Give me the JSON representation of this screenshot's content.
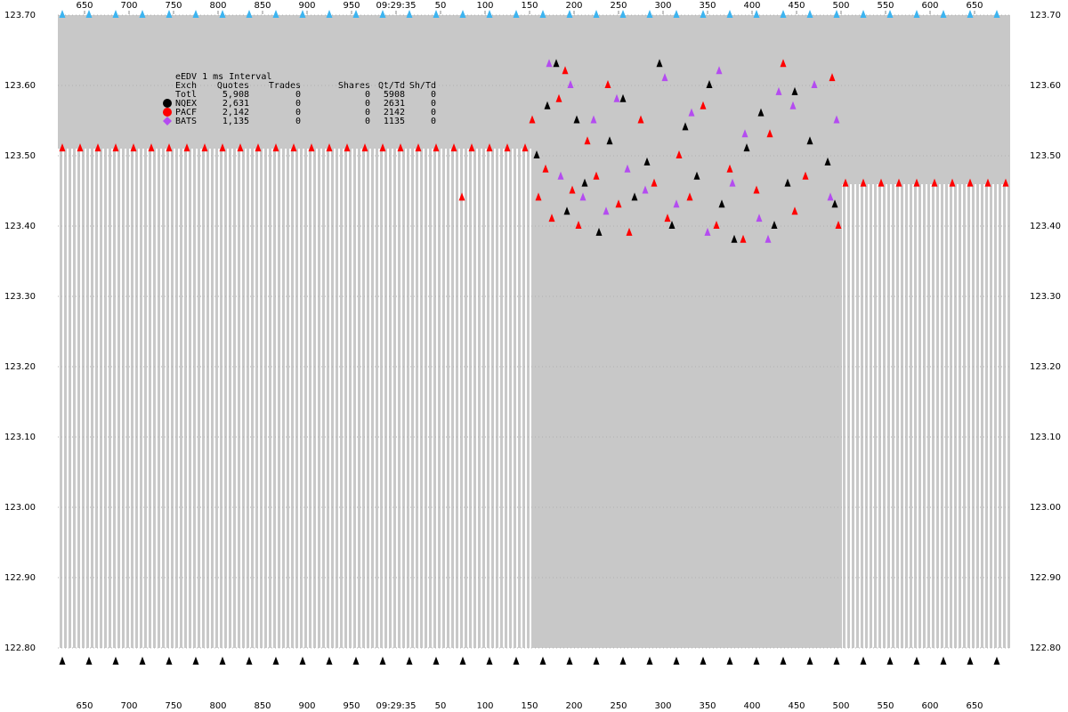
{
  "chart_data": {
    "type": "scatter",
    "xlim": [
      620,
      1690
    ],
    "ylim": [
      122.8,
      123.7
    ],
    "grid": true,
    "xticks": [
      650,
      700,
      750,
      800,
      850,
      900,
      950,
      {
        "value": 1000,
        "label": "09:29:35"
      },
      {
        "value": 1050,
        "label": "50"
      },
      {
        "value": 1100,
        "label": "100"
      },
      {
        "value": 1150,
        "label": "150"
      },
      {
        "value": 1200,
        "label": "200"
      },
      {
        "value": 1250,
        "label": "250"
      },
      {
        "value": 1300,
        "label": "300"
      },
      {
        "value": 1350,
        "label": "350"
      },
      {
        "value": 1400,
        "label": "400"
      },
      {
        "value": 1450,
        "label": "450"
      },
      {
        "value": 1500,
        "label": "500"
      },
      {
        "value": 1550,
        "label": "550"
      },
      {
        "value": 1600,
        "label": "600"
      },
      {
        "value": 1650,
        "label": "650"
      }
    ],
    "yticks": [
      {
        "value": 122.8,
        "label": "122.80"
      },
      {
        "value": 122.9,
        "label": "122.90"
      },
      {
        "value": 123.0,
        "label": "123.00"
      },
      {
        "value": 123.1,
        "label": "123.10"
      },
      {
        "value": 123.2,
        "label": "123.20"
      },
      {
        "value": 123.3,
        "label": "123.30"
      },
      {
        "value": 123.4,
        "label": "123.40"
      },
      {
        "value": 123.5,
        "label": "123.50"
      },
      {
        "value": 123.6,
        "label": "123.60"
      },
      {
        "value": 123.7,
        "label": "123.70"
      }
    ],
    "table": {
      "title": "eEDV 1 ms Interval",
      "columns": [
        "Exch",
        "Quotes",
        "Trades",
        "Shares",
        "Qt/Td",
        "Sh/Td"
      ],
      "rows": [
        [
          "Totl",
          "5,908",
          "0",
          "0",
          "5908",
          "0"
        ],
        [
          "NQEX",
          "2,631",
          "0",
          "0",
          "2631",
          "0"
        ],
        [
          "PACF",
          "2,142",
          "0",
          "0",
          "2142",
          "0"
        ],
        [
          "BATS",
          "1,135",
          "0",
          "0",
          "1135",
          "0"
        ]
      ]
    },
    "series": [
      {
        "color": "#3cb4f0",
        "x": [
          625,
          655,
          685,
          715,
          745,
          775,
          805,
          835,
          865,
          895,
          925,
          955,
          985,
          1015,
          1045,
          1075,
          1105,
          1135,
          1165,
          1195,
          1225,
          1255,
          1285,
          1315,
          1345,
          1375,
          1405,
          1435,
          1465,
          1495,
          1525,
          1555,
          1585,
          1615,
          1645,
          1675
        ],
        "values": [
          123.7,
          123.7,
          123.7,
          123.7,
          123.7,
          123.7,
          123.7,
          123.7,
          123.7,
          123.7,
          123.7,
          123.7,
          123.7,
          123.7,
          123.7,
          123.7,
          123.7,
          123.7,
          123.7,
          123.7,
          123.7,
          123.7,
          123.7,
          123.7,
          123.7,
          123.7,
          123.7,
          123.7,
          123.7,
          123.7,
          123.7,
          123.7,
          123.7,
          123.7,
          123.7,
          123.7
        ]
      },
      {
        "name": "NQEX",
        "color": "#000000",
        "legend_marker": "circle",
        "x": [
          625,
          655,
          685,
          715,
          745,
          775,
          805,
          835,
          865,
          895,
          925,
          955,
          985,
          1015,
          1045,
          1075,
          1105,
          1135,
          1165,
          1195,
          1225,
          1255,
          1285,
          1315,
          1345,
          1375,
          1405,
          1435,
          1465,
          1495,
          1525,
          1555,
          1585,
          1615,
          1645,
          1675,
          1158,
          1170,
          1180,
          1192,
          1203,
          1212,
          1228,
          1240,
          1255,
          1268,
          1282,
          1296,
          1310,
          1325,
          1338,
          1352,
          1366,
          1380,
          1394,
          1410,
          1425,
          1440,
          1448,
          1465,
          1485,
          1493
        ],
        "values": [
          122.78,
          122.78,
          122.78,
          122.78,
          122.78,
          122.78,
          122.78,
          122.78,
          122.78,
          122.78,
          122.78,
          122.78,
          122.78,
          122.78,
          122.78,
          122.78,
          122.78,
          122.78,
          122.78,
          122.78,
          122.78,
          122.78,
          122.78,
          122.78,
          122.78,
          122.78,
          122.78,
          122.78,
          122.78,
          122.78,
          122.78,
          122.78,
          122.78,
          122.78,
          122.78,
          122.78,
          123.5,
          123.57,
          123.63,
          123.42,
          123.55,
          123.46,
          123.39,
          123.52,
          123.58,
          123.44,
          123.49,
          123.63,
          123.4,
          123.54,
          123.47,
          123.6,
          123.43,
          123.38,
          123.51,
          123.56,
          123.4,
          123.46,
          123.59,
          123.52,
          123.49,
          123.43
        ]
      },
      {
        "name": "PACF",
        "color": "#ff0000",
        "legend_marker": "circle",
        "x": [
          625,
          645,
          665,
          685,
          705,
          725,
          745,
          765,
          785,
          805,
          825,
          845,
          865,
          885,
          905,
          925,
          945,
          965,
          985,
          1005,
          1025,
          1045,
          1065,
          1085,
          1105,
          1125,
          1145,
          1074,
          1153,
          1160,
          1168,
          1175,
          1183,
          1190,
          1198,
          1205,
          1215,
          1225,
          1238,
          1250,
          1262,
          1275,
          1290,
          1305,
          1318,
          1330,
          1345,
          1360,
          1375,
          1390,
          1405,
          1420,
          1435,
          1448,
          1460,
          1490,
          1497,
          1505,
          1525,
          1545,
          1565,
          1585,
          1605,
          1625,
          1645,
          1665,
          1685
        ],
        "values": [
          123.51,
          123.51,
          123.51,
          123.51,
          123.51,
          123.51,
          123.51,
          123.51,
          123.51,
          123.51,
          123.51,
          123.51,
          123.51,
          123.51,
          123.51,
          123.51,
          123.51,
          123.51,
          123.51,
          123.51,
          123.51,
          123.51,
          123.51,
          123.51,
          123.51,
          123.51,
          123.51,
          123.44,
          123.55,
          123.44,
          123.48,
          123.41,
          123.58,
          123.62,
          123.45,
          123.4,
          123.52,
          123.47,
          123.6,
          123.43,
          123.39,
          123.55,
          123.46,
          123.41,
          123.5,
          123.44,
          123.57,
          123.4,
          123.48,
          123.38,
          123.45,
          123.53,
          123.63,
          123.42,
          123.47,
          123.61,
          123.4,
          123.46,
          123.46,
          123.46,
          123.46,
          123.46,
          123.46,
          123.46,
          123.46,
          123.46,
          123.46
        ]
      },
      {
        "name": "BATS",
        "color": "#b44cf0",
        "legend_marker": "diamond",
        "x": [
          1172,
          1185,
          1196,
          1210,
          1222,
          1236,
          1248,
          1260,
          1280,
          1302,
          1315,
          1332,
          1350,
          1363,
          1378,
          1392,
          1408,
          1418,
          1430,
          1446,
          1470,
          1488,
          1495
        ],
        "values": [
          123.63,
          123.47,
          123.6,
          123.44,
          123.55,
          123.42,
          123.58,
          123.48,
          123.45,
          123.61,
          123.43,
          123.56,
          123.39,
          123.62,
          123.46,
          123.53,
          123.41,
          123.38,
          123.59,
          123.57,
          123.6,
          123.44,
          123.55
        ]
      }
    ]
  }
}
